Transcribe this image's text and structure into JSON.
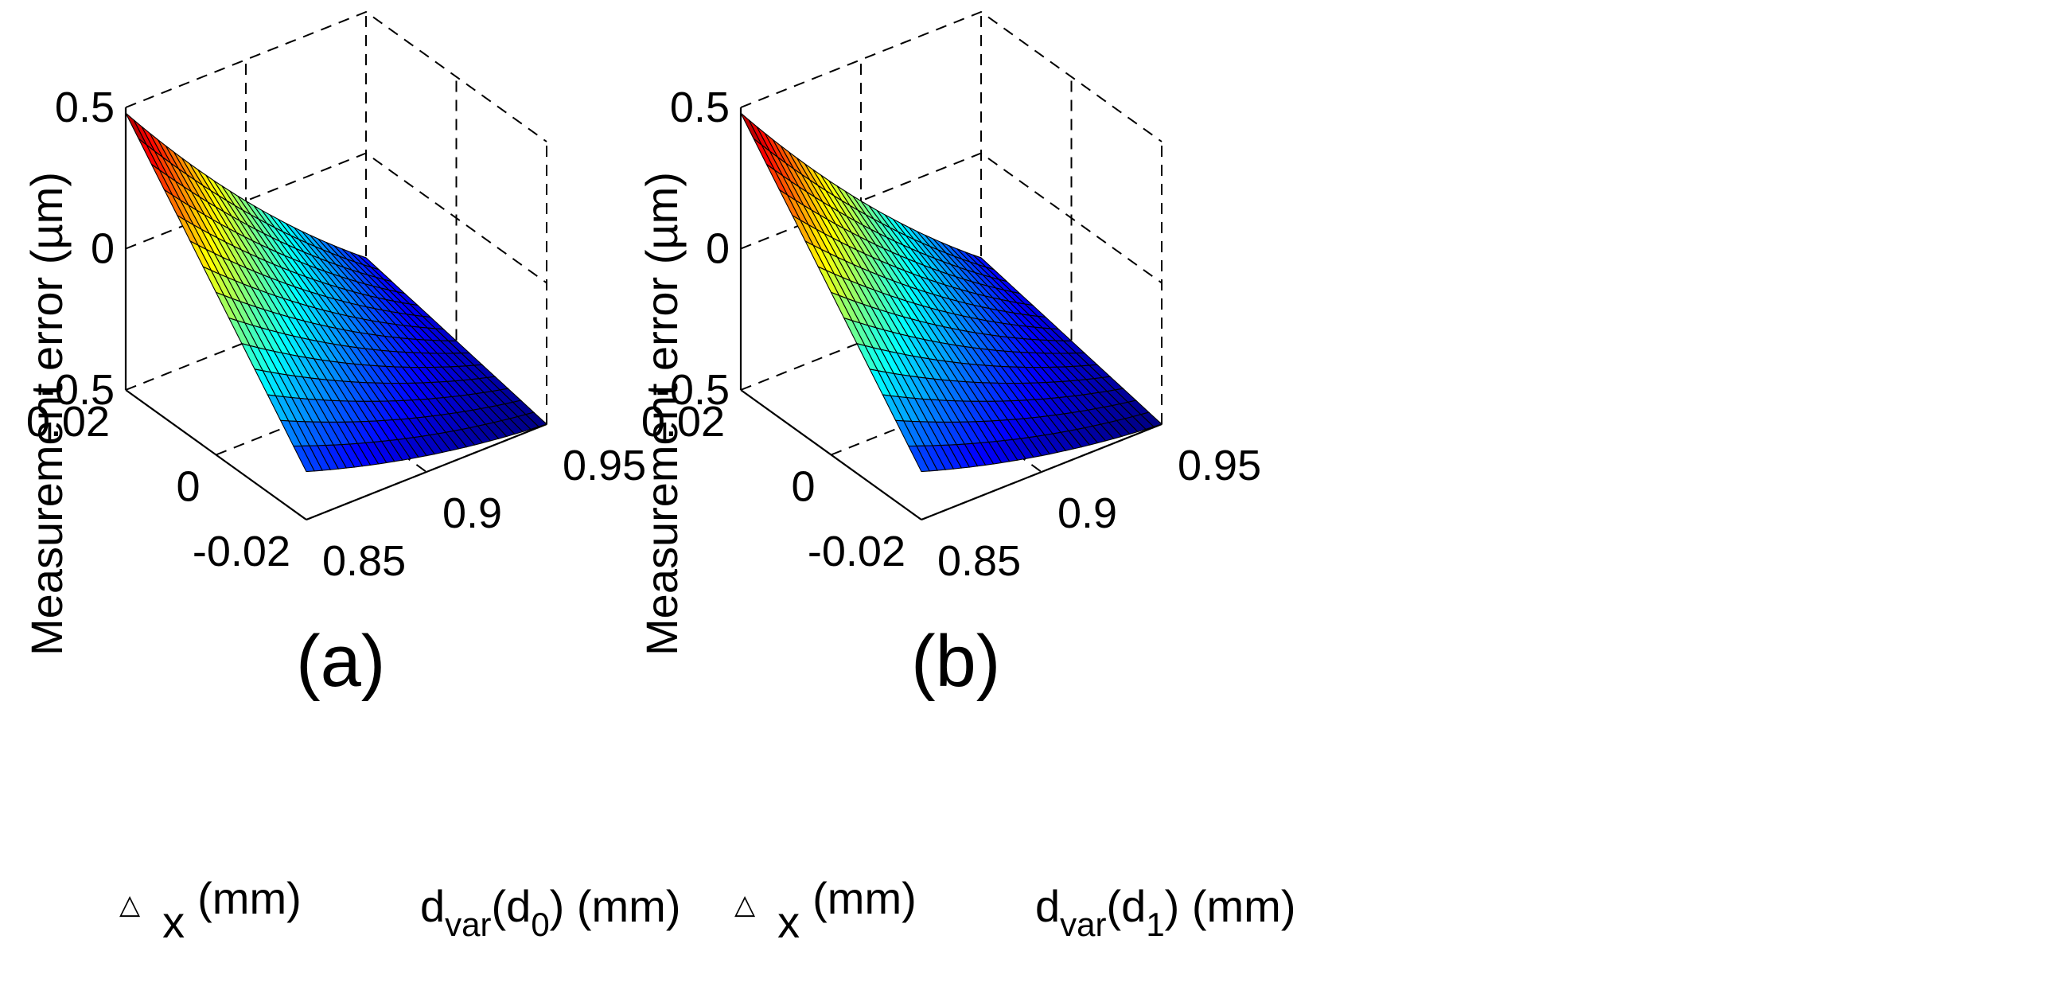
{
  "chart_data": [
    {
      "type": "surface",
      "panel_label": "(a)",
      "x": {
        "label_symbol": "△",
        "label_sub": "x",
        "label_unit": "(mm)",
        "range": [
          -0.02,
          0.02
        ],
        "ticks": [
          "0.02",
          "0",
          "-0.02"
        ]
      },
      "y": {
        "label_main": "d",
        "label_sub": "var",
        "label_paren_open": "(d",
        "label_paren_sub": "0",
        "label_unit": ") (mm)",
        "range": [
          0.85,
          0.95
        ],
        "ticks": [
          "0.85",
          "0.9",
          "0.95"
        ]
      },
      "z": {
        "label": "Measurement error (µm)",
        "range": [
          -0.5,
          0.5
        ],
        "ticks": [
          "0.5",
          "0",
          "-0.5"
        ]
      },
      "surface": {
        "corner_values": {
          "x_max_y_min": 0.48,
          "x_min_y_min": -0.33,
          "x_max_y_max": -0.37,
          "x_min_y_max": -0.5
        },
        "colormap": "jet"
      }
    },
    {
      "type": "surface",
      "panel_label": "(b)",
      "x": {
        "label_symbol": "△",
        "label_sub": "x",
        "label_unit": "(mm)",
        "range": [
          -0.02,
          0.02
        ],
        "ticks": [
          "0.02",
          "0",
          "-0.02"
        ]
      },
      "y": {
        "label_main": "d",
        "label_sub": "var",
        "label_paren_open": "(d",
        "label_paren_sub": "1",
        "label_unit": ") (mm)",
        "range": [
          0.85,
          0.95
        ],
        "ticks": [
          "0.85",
          "0.9",
          "0.95"
        ]
      },
      "z": {
        "label": "Measurement error (µm)",
        "range": [
          -0.5,
          0.5
        ],
        "ticks": [
          "0.5",
          "0",
          "-0.5"
        ]
      },
      "surface": {
        "corner_values": {
          "x_max_y_min": 0.48,
          "x_min_y_min": -0.33,
          "x_max_y_max": -0.37,
          "x_min_y_max": -0.5
        },
        "colormap": "jet"
      }
    }
  ]
}
